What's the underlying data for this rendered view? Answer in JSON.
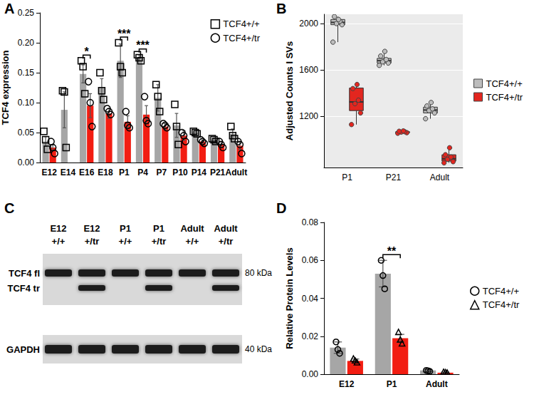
{
  "chart_data": [
    {
      "panel": "A",
      "type": "bar",
      "y_label": "TCF4 expression",
      "categories": [
        "E12",
        "E14",
        "E16",
        "E18",
        "P1",
        "P4",
        "P7",
        "P10",
        "P14",
        "P21",
        "Adult"
      ],
      "ylim": [
        0,
        0.25
      ],
      "yticks": [
        {
          "value": 0,
          "label": "0.00"
        },
        0.05,
        {
          "value": 0.1,
          "label": "0.10"
        },
        0.15,
        {
          "value": 0.2,
          "label": "0.20"
        },
        0.25
      ],
      "grid": false,
      "legend": "upper right",
      "series": [
        {
          "name": "TCF4+/+",
          "color": "#a6a6a6",
          "marker": "square",
          "values": [
            0.035,
            0.088,
            0.148,
            0.125,
            0.17,
            0.175,
            0.108,
            0.062,
            0.05,
            0.038,
            0.048
          ],
          "errors": [
            0.008,
            0.03,
            0.015,
            0.015,
            0.028,
            0.005,
            0.022,
            0.02,
            0.003,
            0.003,
            0.008
          ],
          "points": [
            [
              0.052,
              0.038,
              0.022
            ],
            [
              0.12,
              0.118,
              0.025
            ],
            [
              0.17,
              0.16,
              0.115
            ],
            [
              0.15,
              0.12,
              0.105
            ],
            [
              0.2,
              0.16,
              0.15
            ],
            [
              0.18,
              0.175,
              0.17
            ],
            [
              0.13,
              0.11,
              0.085
            ],
            [
              0.097,
              0.06,
              0.03
            ],
            [
              0.052,
              0.05,
              0.048
            ],
            [
              0.04,
              0.038,
              0.035
            ],
            [
              0.06,
              0.045,
              0.04
            ]
          ]
        },
        {
          "name": "TCF4+/tr",
          "color": "#f21d12",
          "marker": "circle",
          "values": [
            0.025,
            null,
            0.095,
            0.082,
            0.068,
            0.08,
            0.06,
            0.045,
            0.035,
            0.03,
            0.028
          ],
          "errors": [
            0.005,
            null,
            0.02,
            0.008,
            0.01,
            0.015,
            0.005,
            0.008,
            0.003,
            0.005,
            0.006
          ],
          "points": [
            [
              0.035,
              0.025,
              0.015
            ],
            [],
            [
              0.135,
              0.1,
              0.06
            ],
            [
              0.09,
              0.085,
              0.08
            ],
            [
              0.085,
              0.062,
              0.058
            ],
            [
              0.11,
              0.07,
              0.065
            ],
            [
              0.065,
              0.062,
              0.058
            ],
            [
              0.05,
              0.045,
              0.035
            ],
            [
              0.038,
              0.035,
              0.032
            ],
            [
              0.035,
              0.03,
              0.025
            ],
            [
              0.035,
              0.03,
              0.015
            ]
          ]
        }
      ],
      "annotations": [
        {
          "category": "E16",
          "text": "*"
        },
        {
          "category": "P1",
          "text": "***"
        },
        {
          "category": "P4",
          "text": "***"
        }
      ]
    },
    {
      "panel": "B",
      "type": "box",
      "y_label": "Adjusted Counts I SVs",
      "categories": [
        "P1",
        "P21",
        "Adult"
      ],
      "ylim": [
        760,
        2080
      ],
      "yticks": [
        1200,
        1600,
        2000
      ],
      "grid": true,
      "legend": "right",
      "series": [
        {
          "name": "TCF4+/+",
          "color": "#bdbdbd",
          "boxes": [
            [
              1840,
              1990,
              2010,
              2035,
              2060
            ],
            [
              1640,
              1660,
              1680,
              1700,
              1760
            ],
            [
              1180,
              1230,
              1255,
              1280,
              1320
            ]
          ],
          "points": [
            [
              1840,
              1990,
              2000,
              2020,
              2060,
              2035
            ],
            [
              1640,
              1660,
              1670,
              1690,
              1720,
              1760
            ],
            [
              1180,
              1230,
              1250,
              1265,
              1290,
              1320
            ]
          ]
        },
        {
          "name": "TCF4+/tr",
          "color": "#e3261f",
          "boxes": [
            [
              1130,
              1250,
              1325,
              1445,
              1475
            ],
            [
              1055,
              1060,
              1065,
              1068,
              1075
            ],
            [
              800,
              815,
              835,
              870,
              930
            ]
          ],
          "points": [
            [
              1130,
              1230,
              1310,
              1340,
              1440,
              1475
            ],
            [
              1055,
              1060,
              1065,
              1068,
              1072,
              1075
            ],
            [
              800,
              810,
              830,
              850,
              870,
              930
            ]
          ]
        }
      ]
    },
    {
      "panel": "D",
      "type": "bar",
      "y_label": "Relative Protein Levels",
      "categories": [
        "E12",
        "P1",
        "Adult"
      ],
      "ylim": [
        0,
        0.08
      ],
      "yticks": [
        {
          "value": 0,
          "label": "0.00"
        },
        0.02,
        0.04,
        0.06,
        0.08
      ],
      "grid": false,
      "legend": "right",
      "series": [
        {
          "name": "TCF4+/+",
          "color": "#a6a6a6",
          "marker": "circle",
          "values": [
            0.014,
            0.053,
            0.002
          ],
          "errors": [
            0.003,
            0.007,
            0.0005
          ],
          "points": [
            [
              0.017,
              0.013,
              0.011
            ],
            [
              0.06,
              0.052,
              0.045
            ],
            [
              0.002,
              0.0018,
              0.0015
            ]
          ]
        },
        {
          "name": "TCF4+/tr",
          "color": "#f21d12",
          "marker": "triangle",
          "values": [
            0.007,
            0.019,
            0.0008
          ],
          "errors": [
            0.001,
            0.002,
            0.0003
          ],
          "points": [
            [
              0.008,
              0.007,
              0.006
            ],
            [
              0.022,
              0.018,
              0.016
            ],
            [
              0.001,
              0.0008,
              0.0006
            ]
          ]
        }
      ],
      "annotations": [
        {
          "category": "P1",
          "text": "**"
        }
      ]
    }
  ],
  "blot": {
    "panel": "C",
    "lanes": [
      {
        "stage": "E12",
        "genotype": "+/+",
        "bands": [
          "TCF4 fl",
          "GAPDH"
        ]
      },
      {
        "stage": "E12",
        "genotype": "+/tr",
        "bands": [
          "TCF4 fl",
          "TCF4 tr",
          "GAPDH"
        ]
      },
      {
        "stage": "P1",
        "genotype": "+/+",
        "bands": [
          "TCF4 fl",
          "GAPDH"
        ]
      },
      {
        "stage": "P1",
        "genotype": "+/tr",
        "bands": [
          "TCF4 fl",
          "TCF4 tr",
          "GAPDH"
        ]
      },
      {
        "stage": "Adult",
        "genotype": "+/+",
        "bands": [
          "TCF4 fl",
          "GAPDH"
        ]
      },
      {
        "stage": "Adult",
        "genotype": "+/tr",
        "bands": [
          "TCF4 fl",
          "TCF4 tr",
          "GAPDH"
        ]
      }
    ],
    "bands": [
      "TCF4 fl",
      "TCF4 tr"
    ],
    "loading_control": "GAPDH",
    "markers": [
      {
        "label": "80 kDa",
        "band": "TCF4 fl"
      },
      {
        "label": "40 kDa",
        "band": "GAPDH"
      }
    ]
  }
}
